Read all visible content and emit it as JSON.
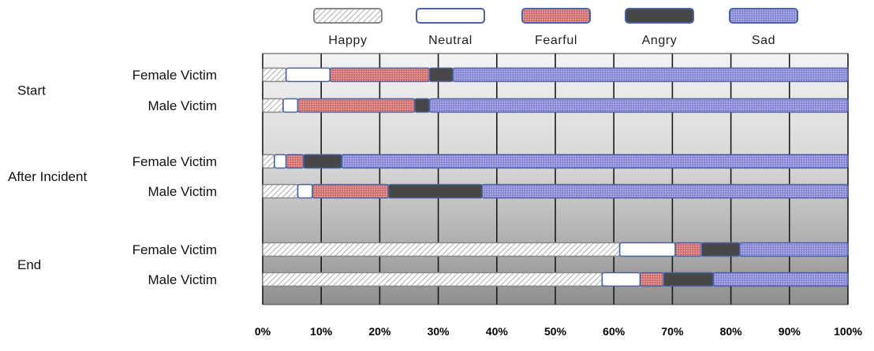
{
  "chart_data": {
    "type": "bar",
    "stacked": "percent",
    "orientation": "horizontal",
    "title": "",
    "xlabel": "",
    "ylabel": "",
    "xlim": [
      0,
      100
    ],
    "x_ticks": [
      "0%",
      "10%",
      "20%",
      "30%",
      "40%",
      "50%",
      "60%",
      "70%",
      "80%",
      "90%",
      "100%"
    ],
    "legend_position": "top",
    "grid": "vertical",
    "groups": [
      {
        "label": "Start",
        "rows": [
          "Female Victim",
          "Male Victim"
        ]
      },
      {
        "label": "After Incident",
        "rows": [
          "Female Victim",
          "Male Victim"
        ]
      },
      {
        "label": "End",
        "rows": [
          "Female Victim",
          "Male Victim"
        ]
      }
    ],
    "series": [
      {
        "name": "Happy",
        "fill": "#ffffff",
        "pattern": "diagonal-hatch",
        "stroke": "#888888",
        "values": [
          4,
          3.5,
          2,
          6,
          61,
          58
        ]
      },
      {
        "name": "Neutral",
        "fill": "#ffffff",
        "pattern": "none",
        "stroke": "#4a62a2",
        "values": [
          7.5,
          2.5,
          2,
          2.5,
          9.5,
          6.5
        ]
      },
      {
        "name": "Fearful",
        "fill": "#d97a7a",
        "pattern": "crosshatch",
        "stroke": "#4a62a2",
        "values": [
          17,
          20,
          3,
          13,
          4.5,
          4
        ]
      },
      {
        "name": "Angry",
        "fill": "#474747",
        "pattern": "none",
        "stroke": "#4a62a2",
        "values": [
          4,
          2.5,
          6.5,
          16,
          6.5,
          8.5
        ]
      },
      {
        "name": "Sad",
        "fill": "#9393dd",
        "pattern": "crosshatch",
        "stroke": "#4a62a2",
        "values": [
          67.5,
          71.5,
          86.5,
          62.5,
          18.5,
          23
        ]
      }
    ]
  }
}
